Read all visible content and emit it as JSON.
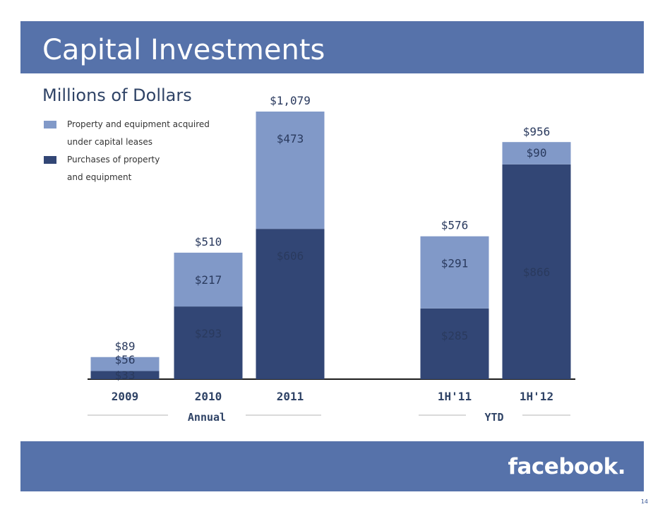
{
  "slide": {
    "title": "Capital Investments",
    "subtitle": "Millions of Dollars",
    "logo": "facebook.",
    "page_number": "14",
    "brand_color": "#5672aa"
  },
  "chart_data": {
    "type": "bar",
    "stacked": true,
    "categories": [
      "2009",
      "2010",
      "2011",
      "1H'11",
      "1H'12"
    ],
    "groups": [
      {
        "label": "Annual",
        "categories": [
          "2009",
          "2010",
          "2011"
        ]
      },
      {
        "label": "YTD",
        "categories": [
          "1H'11",
          "1H'12"
        ]
      }
    ],
    "series": [
      {
        "name": "Purchases of property and equipment",
        "color": "#324675",
        "values": [
          33,
          293,
          606,
          285,
          866
        ],
        "labels": [
          "$33",
          "$293",
          "$606",
          "$285",
          "$866"
        ]
      },
      {
        "name": "Property and equipment acquired under capital leases",
        "color": "#8199c8",
        "values": [
          56,
          217,
          473,
          291,
          90
        ],
        "labels": [
          "$56",
          "$217",
          "$473",
          "$291",
          "$90"
        ]
      }
    ],
    "totals": [
      89,
      510,
      1079,
      576,
      956
    ],
    "total_labels": [
      "$89",
      "$510",
      "$1,079",
      "$576",
      "$956"
    ],
    "legend": [
      {
        "lines": [
          "Property and equipment acquired",
          "under capital leases"
        ],
        "color": "#8199c8"
      },
      {
        "lines": [
          "Purchases of property",
          "and equipment"
        ],
        "color": "#324675"
      }
    ],
    "ylim": [
      0,
      1079
    ]
  }
}
